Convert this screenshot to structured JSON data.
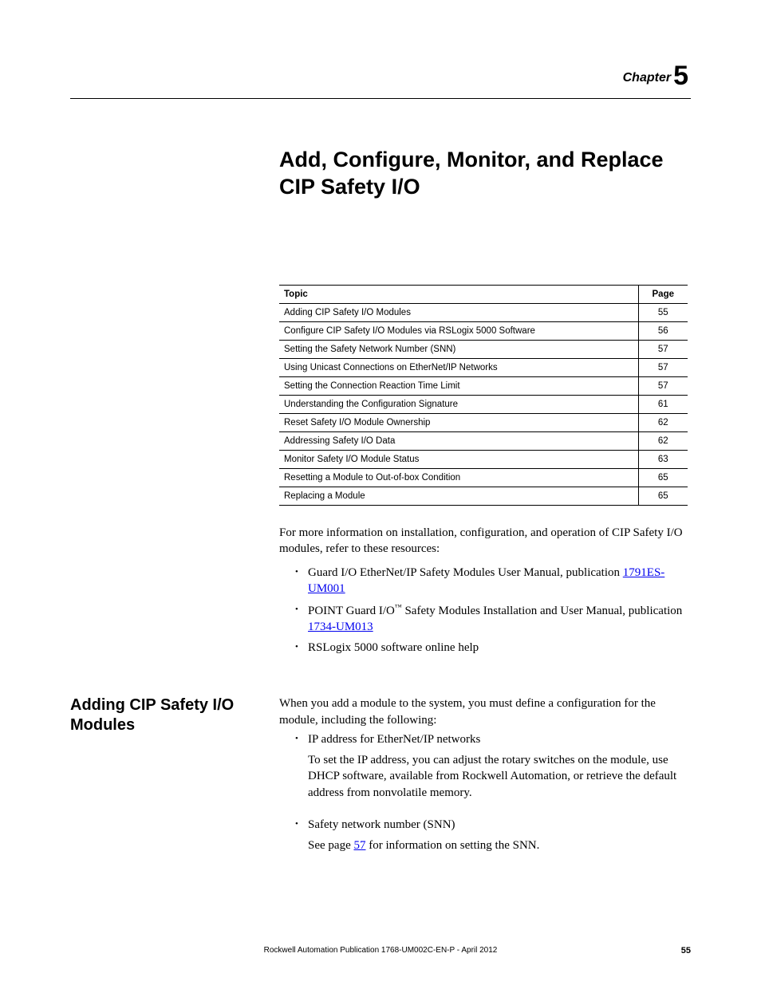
{
  "chapter_label": "Chapter",
  "chapter_number": "5",
  "title": "Add, Configure, Monitor, and Replace CIP Safety I/O",
  "toc": {
    "header_topic": "Topic",
    "header_page": "Page",
    "rows": [
      {
        "topic": "Adding CIP Safety I/O Modules",
        "page": "55"
      },
      {
        "topic": "Configure CIP Safety I/O Modules via RSLogix 5000 Software",
        "page": "56"
      },
      {
        "topic": "Setting the Safety Network Number (SNN)",
        "page": "57"
      },
      {
        "topic": "Using Unicast Connections on EtherNet/IP Networks",
        "page": "57"
      },
      {
        "topic": "Setting the Connection Reaction Time Limit",
        "page": "57"
      },
      {
        "topic": "Understanding the Configuration Signature",
        "page": "61"
      },
      {
        "topic": "Reset Safety I/O Module Ownership",
        "page": "62"
      },
      {
        "topic": "Addressing Safety I/O Data",
        "page": "62"
      },
      {
        "topic": "Monitor Safety I/O Module Status",
        "page": "63"
      },
      {
        "topic": "Resetting a Module to Out-of-box Condition",
        "page": "65"
      },
      {
        "topic": "Replacing a Module",
        "page": "65"
      }
    ]
  },
  "intro_para": "For more information on installation, configuration, and operation of CIP Safety I/O modules, refer to these resources:",
  "resources": {
    "item1_pre": "Guard I/O EtherNet/IP Safety Modules User Manual, publication ",
    "item1_link": "1791ES-UM001",
    "item2_pre": "POINT Guard I/O",
    "item2_tm": "™",
    "item2_mid": " Safety Modules Installation and User Manual, publication ",
    "item2_link": "1734-UM013",
    "item3": "RSLogix 5000 software online help"
  },
  "section": {
    "heading": "Adding CIP Safety I/O Modules",
    "lead": "When you add a module to the system, you must define a configuration for the module, including the following:",
    "b1_title": "IP address for EtherNet/IP networks",
    "b1_body": "To set the IP address, you can adjust the rotary switches on the module, use DHCP software, available from Rockwell Automation, or retrieve the default address from nonvolatile memory.",
    "b2_title": "Safety network number (SNN)",
    "b2_pre": "See page ",
    "b2_link": "57",
    "b2_post": " for information on setting the SNN."
  },
  "footer_text": "Rockwell Automation Publication 1768-UM002C-EN-P - April 2012",
  "footer_page": "55",
  "colors": {
    "link": "#0000ee",
    "text": "#000000",
    "background": "#ffffff"
  }
}
